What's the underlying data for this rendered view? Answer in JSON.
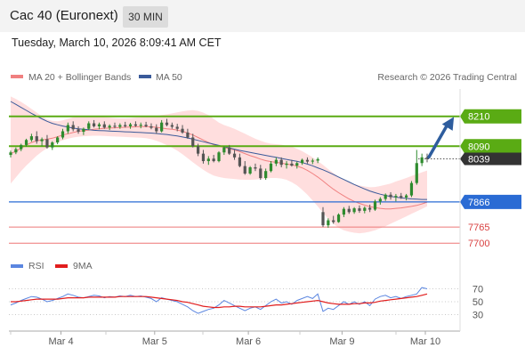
{
  "header": {
    "instrument": "Cac 40 (Euronext)",
    "interval": "30 MIN",
    "datetime": "Tuesday, March 10, 2026 8:09:41 AM CET"
  },
  "legend": {
    "bb_label": "MA 20 + Bollinger Bands",
    "ma50_label": "MA 50",
    "credit": "Research © 2026 Trading Central",
    "rsi_label": "RSI",
    "rsi_ma_label": "9MA"
  },
  "colors": {
    "price_up": "#2e8b2e",
    "price_down": "#555555",
    "bollinger_fill": "#ffdede",
    "ma20": "#f08080",
    "ma50": "#3a5a9a",
    "resistance": "#5aab14",
    "pivot": "#2a6bd4",
    "support": "#ee7777",
    "current": "#333333",
    "arrow": "#2e5d9e",
    "rsi": "#5b86e0",
    "rsi_ma": "#e11d1d"
  },
  "chart_data": [
    {
      "type": "candlestick",
      "title": "",
      "x_labels": [
        "Mar 4",
        "Mar 5",
        "Mar 6",
        "Mar 9",
        "Mar 10"
      ],
      "y_range": [
        7640,
        8320
      ],
      "grid": false,
      "candles": [
        {
          "o": 8055,
          "h": 8072,
          "l": 8045,
          "c": 8065
        },
        {
          "o": 8065,
          "h": 8085,
          "l": 8058,
          "c": 8078
        },
        {
          "o": 8078,
          "h": 8100,
          "l": 8070,
          "c": 8095
        },
        {
          "o": 8095,
          "h": 8120,
          "l": 8088,
          "c": 8115
        },
        {
          "o": 8115,
          "h": 8140,
          "l": 8108,
          "c": 8130
        },
        {
          "o": 8130,
          "h": 8150,
          "l": 8100,
          "c": 8110
        },
        {
          "o": 8110,
          "h": 8125,
          "l": 8090,
          "c": 8118
        },
        {
          "o": 8118,
          "h": 8135,
          "l": 8080,
          "c": 8085
        },
        {
          "o": 8085,
          "h": 8110,
          "l": 8075,
          "c": 8105
        },
        {
          "o": 8105,
          "h": 8130,
          "l": 8098,
          "c": 8125
        },
        {
          "o": 8125,
          "h": 8160,
          "l": 8118,
          "c": 8150
        },
        {
          "o": 8150,
          "h": 8185,
          "l": 8140,
          "c": 8175
        },
        {
          "o": 8175,
          "h": 8190,
          "l": 8150,
          "c": 8158
        },
        {
          "o": 8158,
          "h": 8170,
          "l": 8140,
          "c": 8148
        },
        {
          "o": 8148,
          "h": 8165,
          "l": 8135,
          "c": 8160
        },
        {
          "o": 8160,
          "h": 8190,
          "l": 8155,
          "c": 8182
        },
        {
          "o": 8182,
          "h": 8195,
          "l": 8165,
          "c": 8170
        },
        {
          "o": 8170,
          "h": 8185,
          "l": 8158,
          "c": 8178
        },
        {
          "o": 8178,
          "h": 8190,
          "l": 8160,
          "c": 8165
        },
        {
          "o": 8165,
          "h": 8178,
          "l": 8155,
          "c": 8172
        },
        {
          "o": 8172,
          "h": 8185,
          "l": 8162,
          "c": 8168
        },
        {
          "o": 8168,
          "h": 8182,
          "l": 8160,
          "c": 8175
        },
        {
          "o": 8175,
          "h": 8188,
          "l": 8165,
          "c": 8170
        },
        {
          "o": 8170,
          "h": 8184,
          "l": 8160,
          "c": 8178
        },
        {
          "o": 8178,
          "h": 8190,
          "l": 8168,
          "c": 8172
        },
        {
          "o": 8172,
          "h": 8185,
          "l": 8162,
          "c": 8176
        },
        {
          "o": 8176,
          "h": 8188,
          "l": 8166,
          "c": 8170
        },
        {
          "o": 8170,
          "h": 8182,
          "l": 8158,
          "c": 8164
        },
        {
          "o": 8164,
          "h": 8178,
          "l": 8140,
          "c": 8150
        },
        {
          "o": 8150,
          "h": 8195,
          "l": 8145,
          "c": 8185
        },
        {
          "o": 8185,
          "h": 8200,
          "l": 8170,
          "c": 8175
        },
        {
          "o": 8175,
          "h": 8185,
          "l": 8160,
          "c": 8168
        },
        {
          "o": 8168,
          "h": 8180,
          "l": 8150,
          "c": 8160
        },
        {
          "o": 8160,
          "h": 8175,
          "l": 8140,
          "c": 8145
        },
        {
          "o": 8145,
          "h": 8160,
          "l": 8120,
          "c": 8125
        },
        {
          "o": 8125,
          "h": 8140,
          "l": 8085,
          "c": 8090
        },
        {
          "o": 8090,
          "h": 8100,
          "l": 8050,
          "c": 8060
        },
        {
          "o": 8060,
          "h": 8075,
          "l": 8020,
          "c": 8030
        },
        {
          "o": 8030,
          "h": 8050,
          "l": 8015,
          "c": 8040
        },
        {
          "o": 8040,
          "h": 8055,
          "l": 8025,
          "c": 8030
        },
        {
          "o": 8030,
          "h": 8070,
          "l": 8025,
          "c": 8065
        },
        {
          "o": 8065,
          "h": 8090,
          "l": 8055,
          "c": 8085
        },
        {
          "o": 8085,
          "h": 8095,
          "l": 8055,
          "c": 8060
        },
        {
          "o": 8060,
          "h": 8075,
          "l": 8035,
          "c": 8045
        },
        {
          "o": 8045,
          "h": 8060,
          "l": 8005,
          "c": 8010
        },
        {
          "o": 8010,
          "h": 8030,
          "l": 7975,
          "c": 7980
        },
        {
          "o": 7980,
          "h": 8010,
          "l": 7975,
          "c": 8005
        },
        {
          "o": 8005,
          "h": 8020,
          "l": 7990,
          "c": 8000
        },
        {
          "o": 8000,
          "h": 8015,
          "l": 7955,
          "c": 7962
        },
        {
          "o": 7962,
          "h": 8000,
          "l": 7955,
          "c": 7990
        },
        {
          "o": 7990,
          "h": 8030,
          "l": 7985,
          "c": 8020
        },
        {
          "o": 8020,
          "h": 8045,
          "l": 8010,
          "c": 8035
        },
        {
          "o": 8035,
          "h": 8045,
          "l": 8005,
          "c": 8015
        },
        {
          "o": 8015,
          "h": 8030,
          "l": 8000,
          "c": 8020
        },
        {
          "o": 8020,
          "h": 8035,
          "l": 8008,
          "c": 8012
        },
        {
          "o": 8012,
          "h": 8028,
          "l": 8000,
          "c": 8022
        },
        {
          "o": 8022,
          "h": 8040,
          "l": 8015,
          "c": 8035
        },
        {
          "o": 8035,
          "h": 8045,
          "l": 8020,
          "c": 8028
        },
        {
          "o": 8028,
          "h": 8040,
          "l": 8018,
          "c": 8032
        },
        {
          "o": 8032,
          "h": 8045,
          "l": 8022,
          "c": 8038
        },
        {
          "o": 7825,
          "h": 7845,
          "l": 7765,
          "c": 7772
        },
        {
          "o": 7772,
          "h": 7800,
          "l": 7762,
          "c": 7792
        },
        {
          "o": 7792,
          "h": 7810,
          "l": 7778,
          "c": 7785
        },
        {
          "o": 7785,
          "h": 7820,
          "l": 7782,
          "c": 7815
        },
        {
          "o": 7815,
          "h": 7845,
          "l": 7805,
          "c": 7838
        },
        {
          "o": 7838,
          "h": 7850,
          "l": 7818,
          "c": 7825
        },
        {
          "o": 7825,
          "h": 7845,
          "l": 7818,
          "c": 7840
        },
        {
          "o": 7840,
          "h": 7852,
          "l": 7822,
          "c": 7830
        },
        {
          "o": 7830,
          "h": 7848,
          "l": 7820,
          "c": 7842
        },
        {
          "o": 7842,
          "h": 7855,
          "l": 7825,
          "c": 7835
        },
        {
          "o": 7835,
          "h": 7875,
          "l": 7830,
          "c": 7868
        },
        {
          "o": 7868,
          "h": 7885,
          "l": 7855,
          "c": 7878
        },
        {
          "o": 7878,
          "h": 7900,
          "l": 7870,
          "c": 7895
        },
        {
          "o": 7895,
          "h": 7905,
          "l": 7875,
          "c": 7885
        },
        {
          "o": 7885,
          "h": 7898,
          "l": 7868,
          "c": 7890
        },
        {
          "o": 7890,
          "h": 7902,
          "l": 7878,
          "c": 7884
        },
        {
          "o": 7884,
          "h": 7898,
          "l": 7872,
          "c": 7892
        },
        {
          "o": 7892,
          "h": 7950,
          "l": 7885,
          "c": 7942
        },
        {
          "o": 7942,
          "h": 8075,
          "l": 7935,
          "c": 8022
        },
        {
          "o": 8022,
          "h": 8060,
          "l": 8010,
          "c": 8045
        },
        {
          "o": 8045,
          "h": 8060,
          "l": 8025,
          "c": 8039
        }
      ],
      "ma20": [
        8060,
        8070,
        8082,
        8094,
        8105,
        8112,
        8115,
        8118,
        8122,
        8128,
        8135,
        8140,
        8145,
        8150,
        8152,
        8155,
        8158,
        8160,
        8162,
        8163,
        8164,
        8165,
        8166,
        8167,
        8168,
        8169,
        8169,
        8168,
        8166,
        8163,
        8160,
        8158,
        8155,
        8150,
        8143,
        8135,
        8125,
        8115,
        8105,
        8096,
        8090,
        8085,
        8080,
        8075,
        8068,
        8060,
        8052,
        8046,
        8038,
        8032,
        8028,
        8025,
        8022,
        8018,
        8015,
        8010,
        8003,
        7993,
        7980,
        7966,
        7950,
        7933,
        7917,
        7903,
        7890,
        7878,
        7868,
        7860,
        7853,
        7847,
        7843,
        7840,
        7838,
        7838,
        7840,
        7842,
        7845,
        7848,
        7852,
        7858,
        7865
      ],
      "bb_upper": [
        8290,
        8280,
        8268,
        8255,
        8240,
        8225,
        8210,
        8198,
        8192,
        8190,
        8194,
        8200,
        8206,
        8210,
        8212,
        8213,
        8212,
        8210,
        8207,
        8205,
        8203,
        8202,
        8202,
        8203,
        8205,
        8207,
        8208,
        8210,
        8212,
        8215,
        8218,
        8222,
        8226,
        8230,
        8233,
        8235,
        8232,
        8225,
        8215,
        8200,
        8185,
        8175,
        8168,
        8160,
        8150,
        8140,
        8130,
        8120,
        8112,
        8105,
        8100,
        8098,
        8096,
        8092,
        8088,
        8080,
        8070,
        8058,
        8045,
        8030,
        8015,
        7998,
        7982,
        7968,
        7955,
        7945,
        7938,
        7932,
        7928,
        7925,
        7926,
        7930,
        7935,
        7940,
        7948,
        7955,
        7962,
        7970,
        7978,
        7985,
        7992
      ],
      "bb_lower": [
        7940,
        7965,
        7990,
        8012,
        8032,
        8052,
        8068,
        8082,
        8095,
        8106,
        8114,
        8120,
        8125,
        8128,
        8130,
        8131,
        8132,
        8132,
        8131,
        8130,
        8129,
        8128,
        8127,
        8126,
        8125,
        8124,
        8122,
        8118,
        8112,
        8104,
        8094,
        8084,
        8072,
        8058,
        8042,
        8025,
        8010,
        7995,
        7982,
        7972,
        7966,
        7962,
        7960,
        7958,
        7956,
        7955,
        7955,
        7956,
        7958,
        7960,
        7962,
        7962,
        7960,
        7955,
        7945,
        7932,
        7915,
        7895,
        7872,
        7848,
        7822,
        7798,
        7778,
        7762,
        7752,
        7746,
        7742,
        7740,
        7742,
        7746,
        7752,
        7760,
        7768,
        7778,
        7788,
        7798,
        7808,
        7818,
        7828,
        7838,
        7848
      ],
      "ma50": [
        8270,
        8258,
        8246,
        8234,
        8222,
        8211,
        8200,
        8190,
        8182,
        8176,
        8171,
        8167,
        8163,
        8160,
        8158,
        8156,
        8154,
        8153,
        8152,
        8151,
        8150,
        8149,
        8148,
        8147,
        8146,
        8145,
        8144,
        8143,
        8141,
        8139,
        8137,
        8134,
        8131,
        8127,
        8123,
        8118,
        8113,
        8108,
        8103,
        8098,
        8093,
        8088,
        8083,
        8078,
        8073,
        8069,
        8065,
        8061,
        8057,
        8053,
        8049,
        8045,
        8041,
        8037,
        8033,
        8029,
        8024,
        8018,
        8011,
        8003,
        7995,
        7986,
        7976,
        7966,
        7956,
        7946,
        7936,
        7927,
        7918,
        7910,
        7903,
        7897,
        7892,
        7888,
        7885,
        7882,
        7880,
        7878,
        7877,
        7876,
        7876
      ],
      "levels": [
        {
          "value": 8210,
          "label": "8210",
          "kind": "resistance"
        },
        {
          "value": 8090,
          "label": "8090",
          "kind": "resistance"
        },
        {
          "value": 8039,
          "label": "8039",
          "kind": "current"
        },
        {
          "value": 7866,
          "label": "7866",
          "kind": "pivot"
        },
        {
          "value": 7765,
          "label": "7765",
          "kind": "support"
        },
        {
          "value": 7700,
          "label": "7700",
          "kind": "support"
        }
      ],
      "arrow": {
        "from": 8039,
        "to": 8210
      }
    },
    {
      "type": "line",
      "title": "",
      "y_range": [
        10,
        90
      ],
      "y_ticks": [
        30,
        50,
        70
      ],
      "series": [
        {
          "name": "RSI",
          "values": [
            45,
            48,
            52,
            55,
            58,
            57,
            54,
            50,
            52,
            55,
            58,
            62,
            60,
            57,
            56,
            58,
            60,
            59,
            56,
            58,
            57,
            59,
            58,
            60,
            58,
            59,
            57,
            55,
            50,
            56,
            54,
            52,
            50,
            46,
            42,
            36,
            32,
            35,
            38,
            40,
            45,
            52,
            48,
            44,
            40,
            36,
            40,
            42,
            38,
            44,
            50,
            54,
            48,
            50,
            46,
            52,
            55,
            58,
            55,
            62,
            35,
            40,
            38,
            44,
            50,
            46,
            50,
            46,
            50,
            44,
            54,
            58,
            60,
            56,
            58,
            55,
            58,
            60,
            62,
            72,
            70
          ]
        },
        {
          "name": "9MA",
          "values": [
            50,
            50,
            51,
            52,
            53,
            54,
            54,
            54,
            54,
            54,
            55,
            56,
            56,
            56,
            56,
            57,
            57,
            57,
            57,
            57,
            57,
            58,
            58,
            58,
            58,
            58,
            58,
            57,
            56,
            55,
            54,
            53,
            52,
            50,
            49,
            47,
            45,
            43,
            42,
            41,
            41,
            42,
            42,
            43,
            43,
            42,
            42,
            42,
            42,
            43,
            44,
            45,
            45,
            46,
            47,
            48,
            49,
            50,
            51,
            52,
            50,
            48,
            47,
            46,
            46,
            46,
            47,
            47,
            48,
            48,
            49,
            51,
            52,
            53,
            54,
            55,
            56,
            57,
            58,
            60,
            62
          ]
        }
      ]
    }
  ]
}
